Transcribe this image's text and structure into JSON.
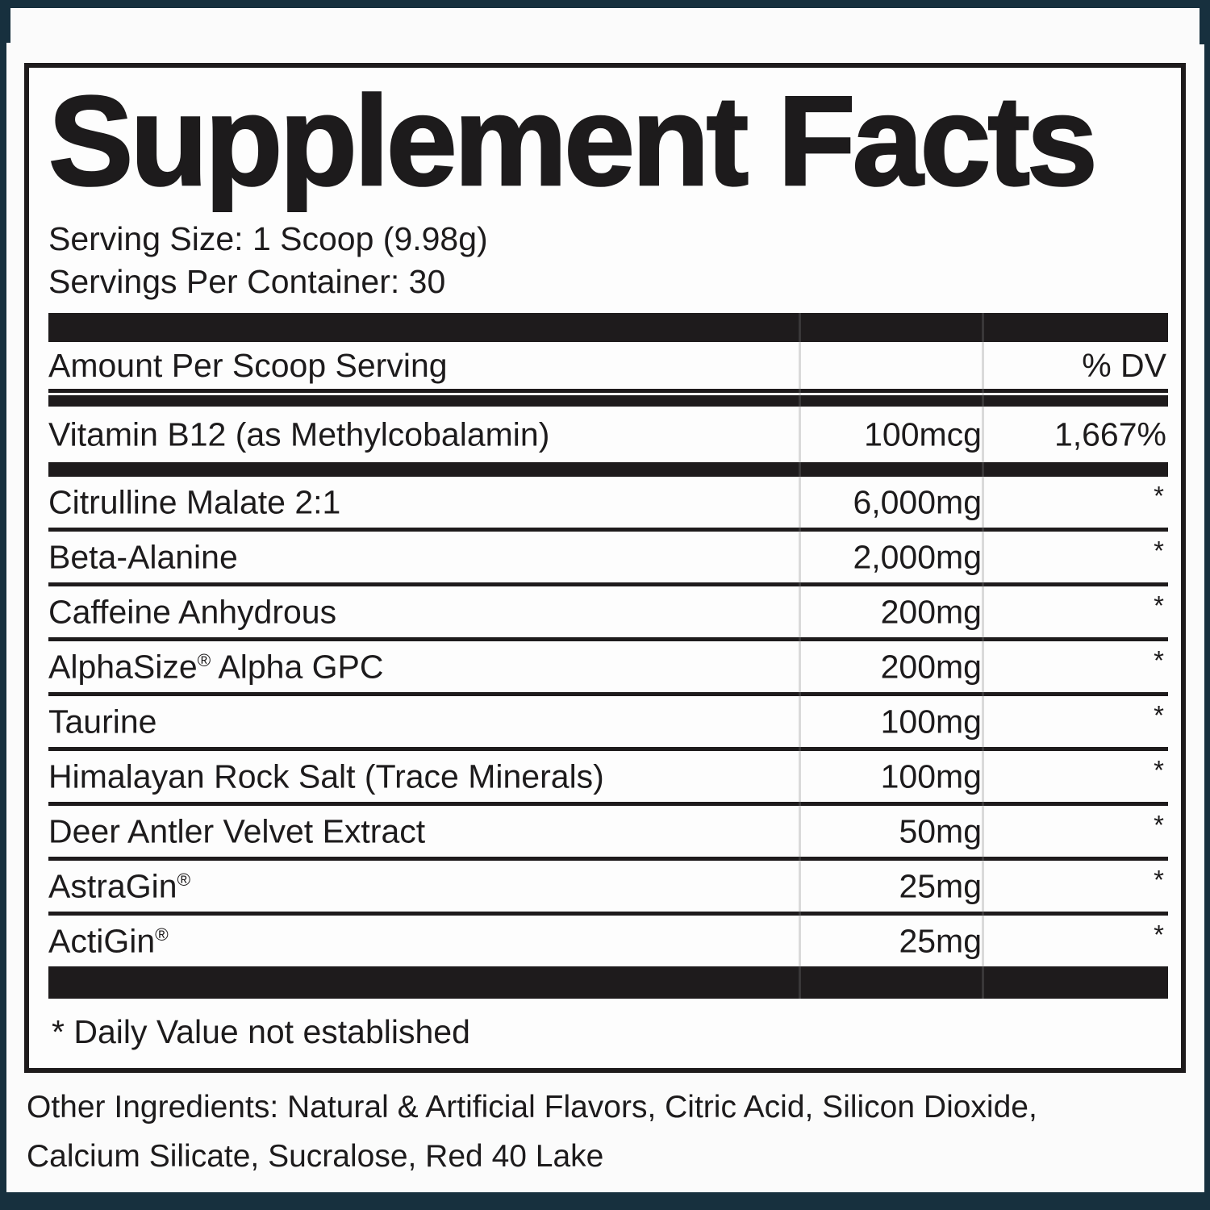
{
  "colors": {
    "frame": "#17303e",
    "bar": "#1e1b1c",
    "text": "#1d1b1c",
    "background": "#fdfdfd"
  },
  "label": {
    "title": "Supplement Facts",
    "serving_size": "Serving Size: 1 Scoop (9.98g)",
    "servings_per_container": "Servings Per Container: 30",
    "header": {
      "amount_label": "Amount Per Scoop Serving",
      "dv_label": "% DV"
    },
    "vitamin_row": {
      "name": "Vitamin B12 (as Methylcobalamin)",
      "amount": "100mcg",
      "dv": "1,667%"
    },
    "rows": [
      {
        "name": "Citrulline Malate 2:1",
        "amount": "6,000mg",
        "dv": "*"
      },
      {
        "name": "Beta-Alanine",
        "amount": "2,000mg",
        "dv": "*"
      },
      {
        "name": "Caffeine Anhydrous",
        "amount": "200mg",
        "dv": "*"
      },
      {
        "name": "AlphaSize® Alpha GPC",
        "amount": "200mg",
        "dv": "*"
      },
      {
        "name": "Taurine",
        "amount": "100mg",
        "dv": "*"
      },
      {
        "name": "Himalayan Rock Salt (Trace Minerals)",
        "amount": "100mg",
        "dv": "*"
      },
      {
        "name": "Deer Antler Velvet Extract",
        "amount": "50mg",
        "dv": "*"
      },
      {
        "name": "AstraGin®",
        "amount": "25mg",
        "dv": "*"
      },
      {
        "name": "ActiGin®",
        "amount": "25mg",
        "dv": "*"
      }
    ],
    "footnote": "* Daily Value not established",
    "other_ingredients": {
      "line1": "Other Ingredients: Natural & Artificial Flavors, Citric Acid, Silicon Dioxide,",
      "line2": "Calcium Silicate, Sucralose, Red 40 Lake"
    }
  }
}
